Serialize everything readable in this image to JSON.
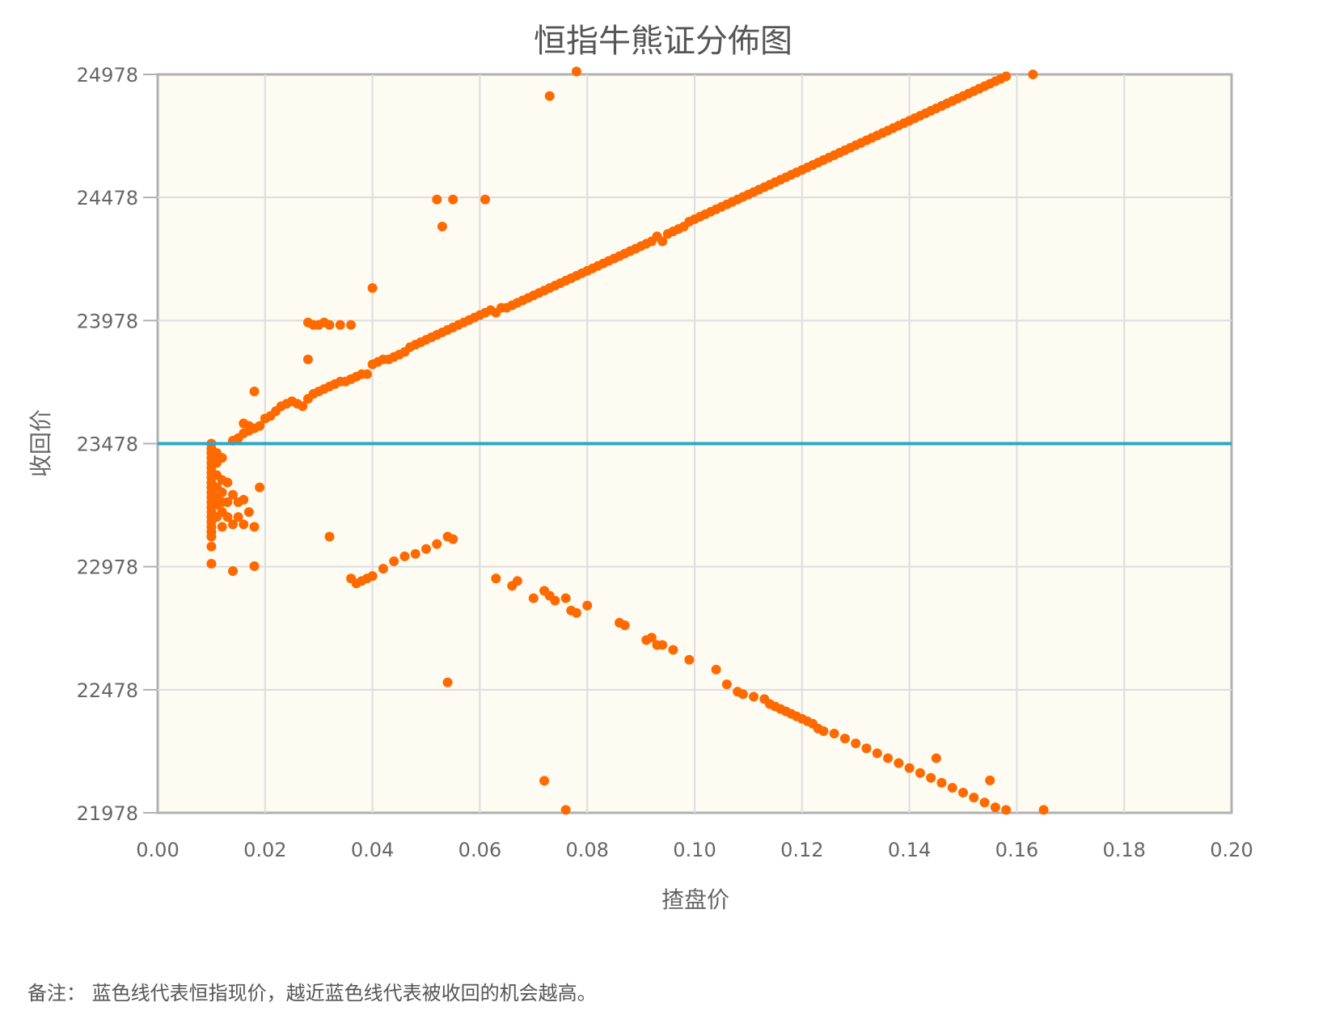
{
  "chart_data": {
    "type": "scatter",
    "title": "恒指牛熊证分佈图",
    "xlabel": "揸盘价",
    "ylabel": "收回价",
    "xlim": [
      0,
      0.2
    ],
    "ylim": [
      21978,
      24978
    ],
    "xticks": [
      "0.00",
      "0.02",
      "0.04",
      "0.06",
      "0.08",
      "0.10",
      "0.12",
      "0.14",
      "0.16",
      "0.18",
      "0.20"
    ],
    "yticks": [
      "24978",
      "24478",
      "23978",
      "23478",
      "22978",
      "22478",
      "21978"
    ],
    "grid": true,
    "reference_line": {
      "y": 23478,
      "color": "#2aa9c7"
    },
    "colors": {
      "points": "#ff6a00",
      "plot_bg": "#fdfbf2",
      "grid": "#dddddd",
      "frame": "#b0b0b0"
    },
    "points": [
      [
        0.01,
        23478
      ],
      [
        0.01,
        23458
      ],
      [
        0.01,
        23440
      ],
      [
        0.01,
        23420
      ],
      [
        0.01,
        23400
      ],
      [
        0.01,
        23380
      ],
      [
        0.01,
        23360
      ],
      [
        0.01,
        23340
      ],
      [
        0.01,
        23320
      ],
      [
        0.01,
        23300
      ],
      [
        0.01,
        23280
      ],
      [
        0.01,
        23260
      ],
      [
        0.01,
        23240
      ],
      [
        0.01,
        23220
      ],
      [
        0.01,
        23200
      ],
      [
        0.01,
        23180
      ],
      [
        0.01,
        23160
      ],
      [
        0.01,
        23140
      ],
      [
        0.01,
        23120
      ],
      [
        0.01,
        23100
      ],
      [
        0.01,
        23060
      ],
      [
        0.011,
        23440
      ],
      [
        0.011,
        23400
      ],
      [
        0.011,
        23350
      ],
      [
        0.011,
        23300
      ],
      [
        0.011,
        23260
      ],
      [
        0.011,
        23230
      ],
      [
        0.011,
        23180
      ],
      [
        0.012,
        23420
      ],
      [
        0.012,
        23330
      ],
      [
        0.012,
        23280
      ],
      [
        0.012,
        23240
      ],
      [
        0.012,
        23200
      ],
      [
        0.012,
        23140
      ],
      [
        0.013,
        23320
      ],
      [
        0.013,
        23240
      ],
      [
        0.013,
        23180
      ],
      [
        0.014,
        23490
      ],
      [
        0.014,
        23270
      ],
      [
        0.014,
        23150
      ],
      [
        0.015,
        23500
      ],
      [
        0.015,
        23240
      ],
      [
        0.015,
        23180
      ],
      [
        0.016,
        23520
      ],
      [
        0.016,
        23250
      ],
      [
        0.016,
        23150
      ],
      [
        0.017,
        23530
      ],
      [
        0.017,
        23200
      ],
      [
        0.018,
        23140
      ],
      [
        0.019,
        23300
      ],
      [
        0.016,
        23560
      ],
      [
        0.017,
        23550
      ],
      [
        0.018,
        23540
      ],
      [
        0.019,
        23550
      ],
      [
        0.02,
        23580
      ],
      [
        0.021,
        23590
      ],
      [
        0.022,
        23610
      ],
      [
        0.023,
        23630
      ],
      [
        0.024,
        23640
      ],
      [
        0.025,
        23650
      ],
      [
        0.026,
        23640
      ],
      [
        0.027,
        23630
      ],
      [
        0.028,
        23660
      ],
      [
        0.029,
        23680
      ],
      [
        0.03,
        23690
      ],
      [
        0.031,
        23700
      ],
      [
        0.032,
        23710
      ],
      [
        0.033,
        23720
      ],
      [
        0.034,
        23730
      ],
      [
        0.035,
        23730
      ],
      [
        0.036,
        23740
      ],
      [
        0.037,
        23750
      ],
      [
        0.038,
        23760
      ],
      [
        0.039,
        23760
      ],
      [
        0.04,
        23800
      ],
      [
        0.041,
        23810
      ],
      [
        0.042,
        23820
      ],
      [
        0.043,
        23820
      ],
      [
        0.044,
        23830
      ],
      [
        0.045,
        23840
      ],
      [
        0.046,
        23850
      ],
      [
        0.047,
        23870
      ],
      [
        0.048,
        23880
      ],
      [
        0.049,
        23890
      ],
      [
        0.05,
        23900
      ],
      [
        0.051,
        23910
      ],
      [
        0.052,
        23920
      ],
      [
        0.053,
        23930
      ],
      [
        0.054,
        23940
      ],
      [
        0.055,
        23950
      ],
      [
        0.056,
        23960
      ],
      [
        0.057,
        23970
      ],
      [
        0.058,
        23980
      ],
      [
        0.059,
        23990
      ],
      [
        0.06,
        24000
      ],
      [
        0.061,
        24010
      ],
      [
        0.062,
        24020
      ],
      [
        0.063,
        24010
      ],
      [
        0.064,
        24030
      ],
      [
        0.065,
        24030
      ],
      [
        0.066,
        24040
      ],
      [
        0.067,
        24050
      ],
      [
        0.068,
        24060
      ],
      [
        0.069,
        24070
      ],
      [
        0.07,
        24080
      ],
      [
        0.071,
        24090
      ],
      [
        0.072,
        24100
      ],
      [
        0.073,
        24110
      ],
      [
        0.074,
        24120
      ],
      [
        0.075,
        24130
      ],
      [
        0.076,
        24140
      ],
      [
        0.077,
        24150
      ],
      [
        0.078,
        24160
      ],
      [
        0.079,
        24170
      ],
      [
        0.08,
        24180
      ],
      [
        0.081,
        24190
      ],
      [
        0.082,
        24200
      ],
      [
        0.083,
        24210
      ],
      [
        0.084,
        24220
      ],
      [
        0.085,
        24230
      ],
      [
        0.086,
        24240
      ],
      [
        0.087,
        24250
      ],
      [
        0.088,
        24260
      ],
      [
        0.089,
        24270
      ],
      [
        0.09,
        24280
      ],
      [
        0.091,
        24290
      ],
      [
        0.092,
        24300
      ],
      [
        0.093,
        24320
      ],
      [
        0.094,
        24300
      ],
      [
        0.095,
        24330
      ],
      [
        0.096,
        24340
      ],
      [
        0.097,
        24350
      ],
      [
        0.098,
        24360
      ],
      [
        0.099,
        24380
      ],
      [
        0.1,
        24390
      ],
      [
        0.101,
        24400
      ],
      [
        0.102,
        24410
      ],
      [
        0.103,
        24420
      ],
      [
        0.104,
        24430
      ],
      [
        0.105,
        24440
      ],
      [
        0.106,
        24450
      ],
      [
        0.107,
        24460
      ],
      [
        0.108,
        24470
      ],
      [
        0.109,
        24480
      ],
      [
        0.11,
        24490
      ],
      [
        0.111,
        24500
      ],
      [
        0.112,
        24510
      ],
      [
        0.113,
        24520
      ],
      [
        0.114,
        24530
      ],
      [
        0.115,
        24540
      ],
      [
        0.116,
        24550
      ],
      [
        0.117,
        24560
      ],
      [
        0.118,
        24570
      ],
      [
        0.119,
        24580
      ],
      [
        0.12,
        24590
      ],
      [
        0.121,
        24600
      ],
      [
        0.122,
        24610
      ],
      [
        0.123,
        24620
      ],
      [
        0.124,
        24630
      ],
      [
        0.125,
        24640
      ],
      [
        0.126,
        24650
      ],
      [
        0.127,
        24660
      ],
      [
        0.128,
        24670
      ],
      [
        0.129,
        24680
      ],
      [
        0.13,
        24690
      ],
      [
        0.131,
        24700
      ],
      [
        0.132,
        24710
      ],
      [
        0.133,
        24720
      ],
      [
        0.134,
        24730
      ],
      [
        0.135,
        24740
      ],
      [
        0.136,
        24750
      ],
      [
        0.137,
        24760
      ],
      [
        0.138,
        24770
      ],
      [
        0.139,
        24780
      ],
      [
        0.14,
        24790
      ],
      [
        0.141,
        24800
      ],
      [
        0.142,
        24810
      ],
      [
        0.143,
        24820
      ],
      [
        0.144,
        24830
      ],
      [
        0.145,
        24840
      ],
      [
        0.146,
        24850
      ],
      [
        0.147,
        24860
      ],
      [
        0.148,
        24870
      ],
      [
        0.149,
        24880
      ],
      [
        0.15,
        24890
      ],
      [
        0.151,
        24900
      ],
      [
        0.152,
        24910
      ],
      [
        0.153,
        24920
      ],
      [
        0.154,
        24930
      ],
      [
        0.155,
        24940
      ],
      [
        0.156,
        24950
      ],
      [
        0.157,
        24960
      ],
      [
        0.158,
        24970
      ],
      [
        0.028,
        23970
      ],
      [
        0.029,
        23960
      ],
      [
        0.03,
        23960
      ],
      [
        0.031,
        23970
      ],
      [
        0.032,
        23960
      ],
      [
        0.034,
        23960
      ],
      [
        0.036,
        23960
      ],
      [
        0.028,
        23820
      ],
      [
        0.04,
        24110
      ],
      [
        0.018,
        23690
      ],
      [
        0.052,
        24470
      ],
      [
        0.053,
        24360
      ],
      [
        0.055,
        24470
      ],
      [
        0.061,
        24470
      ],
      [
        0.073,
        24890
      ],
      [
        0.078,
        24990
      ],
      [
        0.163,
        24978
      ],
      [
        0.01,
        22990
      ],
      [
        0.014,
        22960
      ],
      [
        0.018,
        22980
      ],
      [
        0.032,
        23100
      ],
      [
        0.036,
        22930
      ],
      [
        0.037,
        22910
      ],
      [
        0.038,
        22920
      ],
      [
        0.039,
        22930
      ],
      [
        0.04,
        22940
      ],
      [
        0.042,
        22970
      ],
      [
        0.044,
        23000
      ],
      [
        0.046,
        23020
      ],
      [
        0.048,
        23030
      ],
      [
        0.05,
        23050
      ],
      [
        0.052,
        23070
      ],
      [
        0.054,
        23100
      ],
      [
        0.055,
        23090
      ],
      [
        0.063,
        22930
      ],
      [
        0.066,
        22900
      ],
      [
        0.067,
        22920
      ],
      [
        0.07,
        22850
      ],
      [
        0.072,
        22880
      ],
      [
        0.073,
        22860
      ],
      [
        0.074,
        22840
      ],
      [
        0.076,
        22850
      ],
      [
        0.077,
        22800
      ],
      [
        0.078,
        22790
      ],
      [
        0.08,
        22820
      ],
      [
        0.086,
        22750
      ],
      [
        0.087,
        22740
      ],
      [
        0.091,
        22680
      ],
      [
        0.092,
        22690
      ],
      [
        0.093,
        22660
      ],
      [
        0.094,
        22660
      ],
      [
        0.096,
        22640
      ],
      [
        0.099,
        22600
      ],
      [
        0.104,
        22560
      ],
      [
        0.106,
        22500
      ],
      [
        0.108,
        22470
      ],
      [
        0.109,
        22460
      ],
      [
        0.111,
        22450
      ],
      [
        0.113,
        22440
      ],
      [
        0.114,
        22420
      ],
      [
        0.115,
        22410
      ],
      [
        0.116,
        22400
      ],
      [
        0.117,
        22390
      ],
      [
        0.118,
        22380
      ],
      [
        0.119,
        22370
      ],
      [
        0.12,
        22360
      ],
      [
        0.121,
        22350
      ],
      [
        0.122,
        22340
      ],
      [
        0.123,
        22320
      ],
      [
        0.124,
        22310
      ],
      [
        0.126,
        22300
      ],
      [
        0.128,
        22280
      ],
      [
        0.13,
        22260
      ],
      [
        0.132,
        22240
      ],
      [
        0.134,
        22220
      ],
      [
        0.136,
        22200
      ],
      [
        0.138,
        22180
      ],
      [
        0.14,
        22160
      ],
      [
        0.142,
        22140
      ],
      [
        0.144,
        22120
      ],
      [
        0.146,
        22100
      ],
      [
        0.148,
        22080
      ],
      [
        0.15,
        22060
      ],
      [
        0.152,
        22040
      ],
      [
        0.154,
        22020
      ],
      [
        0.156,
        22000
      ],
      [
        0.158,
        21990
      ],
      [
        0.145,
        22200
      ],
      [
        0.155,
        22110
      ],
      [
        0.165,
        21990
      ],
      [
        0.054,
        22508
      ],
      [
        0.072,
        22108
      ],
      [
        0.076,
        21990
      ]
    ]
  },
  "footnote": "备注：  蓝色线代表恒指现价，越近蓝色线代表被收回的机会越高。"
}
